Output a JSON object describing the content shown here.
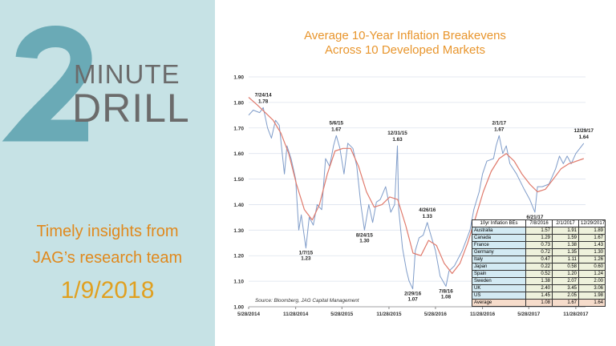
{
  "brand": {
    "number": "2",
    "word1": "MINUTE",
    "word2": "DRILL"
  },
  "tagline": {
    "line1": "Timely insights from",
    "line2": "JAG’s research team"
  },
  "date": "1/9/2018",
  "colors": {
    "panel": "#c6e2e5",
    "teal": "#6aaab6",
    "orange": "#e0891d",
    "series": "#7f9cc9",
    "moving_average": "#e07a6c"
  },
  "chart_data": {
    "type": "line",
    "title": "Average 10-Year Inflation Breakevens",
    "subtitle": "Across 10 Developed Markets",
    "source": "Source: Bloomberg, JAG Capital Management",
    "ylim": [
      1.0,
      1.9
    ],
    "yticks": [
      "1.00",
      "1.10",
      "1.20",
      "1.30",
      "1.40",
      "1.50",
      "1.60",
      "1.70",
      "1.80",
      "1.90"
    ],
    "xlim": [
      "2014-05-28",
      "2018-01-05"
    ],
    "xticks": [
      {
        "date": "2014-05-28",
        "label": "5/28/2014"
      },
      {
        "date": "2014-11-28",
        "label": "11/28/2014"
      },
      {
        "date": "2015-05-28",
        "label": "5/28/2015"
      },
      {
        "date": "2015-11-28",
        "label": "11/28/2015"
      },
      {
        "date": "2016-05-28",
        "label": "5/28/2016"
      },
      {
        "date": "2016-11-28",
        "label": "11/28/2016"
      },
      {
        "date": "2017-05-28",
        "label": "5/28/2017"
      },
      {
        "date": "2017-11-28",
        "label": "11/28/2017"
      }
    ],
    "grid": true,
    "series": [
      {
        "points": [
          [
            "2014-05-28",
            1.75
          ],
          [
            "2014-06-15",
            1.77
          ],
          [
            "2014-07-10",
            1.76
          ],
          [
            "2014-07-24",
            1.78
          ],
          [
            "2014-08-10",
            1.7
          ],
          [
            "2014-08-25",
            1.66
          ],
          [
            "2014-09-10",
            1.73
          ],
          [
            "2014-09-25",
            1.71
          ],
          [
            "2014-10-15",
            1.52
          ],
          [
            "2014-10-25",
            1.63
          ],
          [
            "2014-11-10",
            1.58
          ],
          [
            "2014-11-28",
            1.5
          ],
          [
            "2014-12-10",
            1.3
          ],
          [
            "2014-12-20",
            1.36
          ],
          [
            "2015-01-07",
            1.23
          ],
          [
            "2015-01-20",
            1.35
          ],
          [
            "2015-02-05",
            1.32
          ],
          [
            "2015-02-20",
            1.4
          ],
          [
            "2015-03-10",
            1.38
          ],
          [
            "2015-03-25",
            1.58
          ],
          [
            "2015-04-10",
            1.55
          ],
          [
            "2015-04-25",
            1.63
          ],
          [
            "2015-05-06",
            1.67
          ],
          [
            "2015-05-20",
            1.62
          ],
          [
            "2015-06-05",
            1.52
          ],
          [
            "2015-06-20",
            1.64
          ],
          [
            "2015-07-10",
            1.62
          ],
          [
            "2015-07-25",
            1.55
          ],
          [
            "2015-08-10",
            1.4
          ],
          [
            "2015-08-24",
            1.3
          ],
          [
            "2015-09-10",
            1.4
          ],
          [
            "2015-09-25",
            1.33
          ],
          [
            "2015-10-10",
            1.41
          ],
          [
            "2015-10-25",
            1.42
          ],
          [
            "2015-11-15",
            1.47
          ],
          [
            "2015-12-05",
            1.37
          ],
          [
            "2015-12-20",
            1.4
          ],
          [
            "2015-12-31",
            1.63
          ],
          [
            "2016-01-05",
            1.38
          ],
          [
            "2016-01-20",
            1.23
          ],
          [
            "2016-02-05",
            1.14
          ],
          [
            "2016-02-15",
            1.1
          ],
          [
            "2016-02-29",
            1.07
          ],
          [
            "2016-03-10",
            1.22
          ],
          [
            "2016-03-25",
            1.27
          ],
          [
            "2016-04-10",
            1.28
          ],
          [
            "2016-04-26",
            1.33
          ],
          [
            "2016-05-10",
            1.28
          ],
          [
            "2016-05-28",
            1.22
          ],
          [
            "2016-06-15",
            1.12
          ],
          [
            "2016-07-08",
            1.08
          ],
          [
            "2016-07-20",
            1.14
          ],
          [
            "2016-08-10",
            1.16
          ],
          [
            "2016-09-10",
            1.22
          ],
          [
            "2016-10-10",
            1.3
          ],
          [
            "2016-10-25",
            1.38
          ],
          [
            "2016-11-15",
            1.45
          ],
          [
            "2016-11-28",
            1.52
          ],
          [
            "2016-12-15",
            1.57
          ],
          [
            "2017-01-10",
            1.58
          ],
          [
            "2017-01-20",
            1.63
          ],
          [
            "2017-02-01",
            1.67
          ],
          [
            "2017-02-15",
            1.6
          ],
          [
            "2017-03-01",
            1.63
          ],
          [
            "2017-03-15",
            1.56
          ],
          [
            "2017-04-10",
            1.52
          ],
          [
            "2017-05-10",
            1.46
          ],
          [
            "2017-06-01",
            1.42
          ],
          [
            "2017-06-21",
            1.37
          ],
          [
            "2017-07-01",
            1.47
          ],
          [
            "2017-07-20",
            1.47
          ],
          [
            "2017-08-15",
            1.48
          ],
          [
            "2017-09-10",
            1.54
          ],
          [
            "2017-09-25",
            1.59
          ],
          [
            "2017-10-10",
            1.56
          ],
          [
            "2017-10-25",
            1.59
          ],
          [
            "2017-11-10",
            1.56
          ],
          [
            "2017-11-28",
            1.6
          ],
          [
            "2017-12-29",
            1.64
          ]
        ]
      },
      {
        "points": [
          [
            "2014-05-28",
            1.82
          ],
          [
            "2014-07-01",
            1.79
          ],
          [
            "2014-08-01",
            1.76
          ],
          [
            "2014-09-01",
            1.73
          ],
          [
            "2014-10-01",
            1.68
          ],
          [
            "2014-11-01",
            1.6
          ],
          [
            "2014-12-01",
            1.48
          ],
          [
            "2015-01-01",
            1.38
          ],
          [
            "2015-02-01",
            1.34
          ],
          [
            "2015-03-01",
            1.4
          ],
          [
            "2015-04-01",
            1.52
          ],
          [
            "2015-05-01",
            1.61
          ],
          [
            "2015-06-01",
            1.62
          ],
          [
            "2015-07-01",
            1.62
          ],
          [
            "2015-08-01",
            1.55
          ],
          [
            "2015-09-01",
            1.45
          ],
          [
            "2015-10-01",
            1.39
          ],
          [
            "2015-11-01",
            1.4
          ],
          [
            "2015-12-01",
            1.43
          ],
          [
            "2016-01-01",
            1.42
          ],
          [
            "2016-02-01",
            1.32
          ],
          [
            "2016-03-01",
            1.21
          ],
          [
            "2016-04-01",
            1.2
          ],
          [
            "2016-05-01",
            1.26
          ],
          [
            "2016-06-01",
            1.24
          ],
          [
            "2016-07-01",
            1.17
          ],
          [
            "2016-08-01",
            1.13
          ],
          [
            "2016-09-01",
            1.17
          ],
          [
            "2016-10-01",
            1.25
          ],
          [
            "2016-11-01",
            1.35
          ],
          [
            "2016-12-01",
            1.45
          ],
          [
            "2017-01-01",
            1.53
          ],
          [
            "2017-02-01",
            1.58
          ],
          [
            "2017-03-01",
            1.6
          ],
          [
            "2017-04-01",
            1.57
          ],
          [
            "2017-05-01",
            1.52
          ],
          [
            "2017-06-01",
            1.48
          ],
          [
            "2017-07-01",
            1.45
          ],
          [
            "2017-08-01",
            1.46
          ],
          [
            "2017-09-01",
            1.5
          ],
          [
            "2017-10-01",
            1.54
          ],
          [
            "2017-11-01",
            1.56
          ],
          [
            "2017-12-29",
            1.58
          ]
        ]
      }
    ],
    "annotations": [
      {
        "date": "2014-07-24",
        "value": 1.78,
        "label": "7/24/14",
        "value_label": "1.78",
        "pos": "above"
      },
      {
        "date": "2015-01-07",
        "value": 1.23,
        "label": "1/7/15",
        "value_label": "1.23",
        "pos": "below"
      },
      {
        "date": "2015-05-06",
        "value": 1.67,
        "label": "5/6/15",
        "value_label": "1.67",
        "pos": "above"
      },
      {
        "date": "2015-08-24",
        "value": 1.3,
        "label": "8/24/15",
        "value_label": "1.30",
        "pos": "below"
      },
      {
        "date": "2015-12-31",
        "value": 1.63,
        "label": "12/31/15",
        "value_label": "1.63",
        "pos": "above"
      },
      {
        "date": "2016-02-29",
        "value": 1.07,
        "label": "2/29/16",
        "value_label": "1.07",
        "pos": "below"
      },
      {
        "date": "2016-04-26",
        "value": 1.33,
        "label": "4/26/16",
        "value_label": "1.33",
        "pos": "above"
      },
      {
        "date": "2016-07-08",
        "value": 1.08,
        "label": "7/8/16",
        "value_label": "1.08",
        "pos": "below"
      },
      {
        "date": "2017-02-01",
        "value": 1.67,
        "label": "2/1/17",
        "value_label": "1.67",
        "pos": "above"
      },
      {
        "date": "2017-06-21",
        "value": 1.37,
        "label": "6/21/17",
        "value_label": "1.37",
        "pos": "below"
      },
      {
        "date": "2017-12-29",
        "value": 1.64,
        "label": "12/29/17",
        "value_label": "1.64",
        "pos": "above"
      }
    ],
    "table": {
      "headers": [
        "10yr Inflation BEs",
        "7/8/2016",
        "2/1/2017",
        "12/29/2017"
      ],
      "rows": [
        [
          "Australia",
          "1.57",
          "1.91",
          "1.89"
        ],
        [
          "Canada",
          "1.29",
          "1.59",
          "1.67"
        ],
        [
          "France",
          "0.73",
          "1.38",
          "1.43"
        ],
        [
          "Germany",
          "0.72",
          "1.35",
          "1.30"
        ],
        [
          "Italy",
          "0.47",
          "1.11",
          "1.26"
        ],
        [
          "Japan",
          "0.22",
          "0.58",
          "0.60"
        ],
        [
          "Spain",
          "0.52",
          "1.20",
          "1.24"
        ],
        [
          "Sweden",
          "1.38",
          "2.07",
          "2.00"
        ],
        [
          "UK",
          "2.40",
          "3.45",
          "3.06"
        ],
        [
          "US",
          "1.45",
          "2.05",
          "1.98"
        ],
        [
          "Average",
          "1.08",
          "1.67",
          "1.64"
        ]
      ]
    }
  }
}
